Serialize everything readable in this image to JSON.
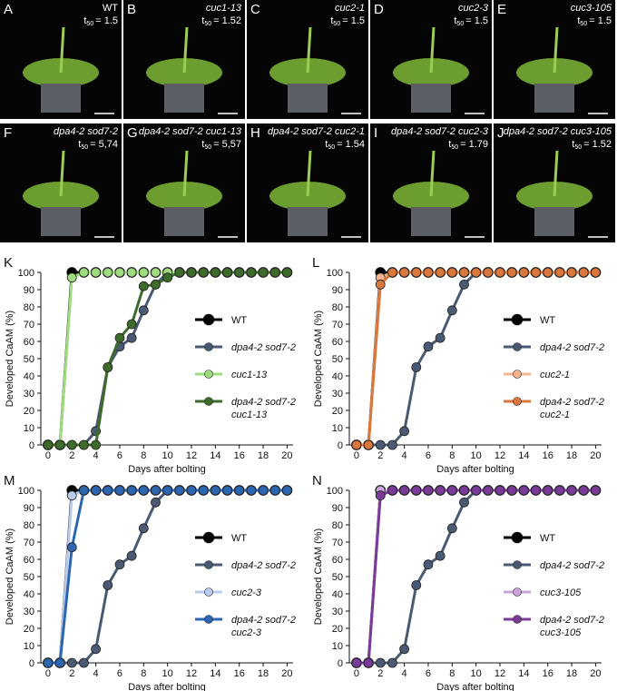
{
  "t50_symbol": "t",
  "t50_subscript": "50",
  "photo_panels": [
    {
      "letter": "A",
      "genotype": "WT",
      "t50": "= 1.5"
    },
    {
      "letter": "B",
      "genotype": "cuc1-13",
      "t50": "= 1.52"
    },
    {
      "letter": "C",
      "genotype": "cuc2-1",
      "t50": "= 1.5"
    },
    {
      "letter": "D",
      "genotype": "cuc2-3",
      "t50": "= 1.5"
    },
    {
      "letter": "E",
      "genotype": "cuc3-105",
      "t50": "= 1.5"
    },
    {
      "letter": "F",
      "genotype": "dpa4-2 sod7-2",
      "t50": "= 5,74"
    },
    {
      "letter": "G",
      "genotype": "dpa4-2 sod7-2 cuc1-13",
      "t50": "= 5,57"
    },
    {
      "letter": "H",
      "genotype": "dpa4-2 sod7-2 cuc2-1",
      "t50": "= 1.54"
    },
    {
      "letter": "I",
      "genotype": "dpa4-2 sod7-2 cuc2-3",
      "t50": "= 1.79"
    },
    {
      "letter": "J",
      "genotype": "dpa4-2 sod7-2 cuc3-105",
      "t50": "= 1.52"
    }
  ],
  "chart_data": [
    {
      "type": "line",
      "panel": "K",
      "xlabel": "Days after bolting",
      "ylabel": "Developed CaAM (%)",
      "x": [
        0,
        1,
        2,
        3,
        4,
        5,
        6,
        7,
        8,
        9,
        10,
        11,
        12,
        13,
        14,
        15,
        16,
        17,
        18,
        19,
        20
      ],
      "xlim": [
        -0.6,
        20.5
      ],
      "ylim": [
        0,
        100
      ],
      "xticks": [
        0,
        2,
        4,
        6,
        8,
        10,
        12,
        14,
        16,
        18,
        20
      ],
      "yticks": [
        0,
        10,
        20,
        30,
        40,
        50,
        60,
        70,
        80,
        90,
        100
      ],
      "series": [
        {
          "name": "WT",
          "color": "#000000",
          "values": [
            0,
            0,
            100,
            100,
            100,
            100,
            100,
            100,
            100,
            100,
            100,
            100,
            100,
            100,
            100,
            100,
            100,
            100,
            100,
            100,
            100
          ]
        },
        {
          "name": "dpa4-2 sod7-2",
          "color": "#4b5a73",
          "values": [
            0,
            0,
            0,
            0,
            8,
            45,
            57,
            62,
            78,
            93,
            100,
            100,
            100,
            100,
            100,
            100,
            100,
            100,
            100,
            100,
            100
          ]
        },
        {
          "name": "cuc1-13",
          "color": "#9fdc80",
          "values": [
            0,
            0,
            97,
            100,
            100,
            100,
            100,
            100,
            100,
            100,
            100,
            100,
            100,
            100,
            100,
            100,
            100,
            100,
            100,
            100,
            100
          ]
        },
        {
          "name": "dpa4-2 sod7-2 cuc1-13",
          "color": "#3e6b2b",
          "values": [
            0,
            0,
            0,
            0,
            0,
            45,
            62,
            70,
            92,
            93,
            97,
            100,
            100,
            100,
            100,
            100,
            100,
            100,
            100,
            100,
            100
          ]
        }
      ]
    },
    {
      "type": "line",
      "panel": "L",
      "xlabel": "Days after bolting",
      "ylabel": "Developed CaAM (%)",
      "x": [
        0,
        1,
        2,
        3,
        4,
        5,
        6,
        7,
        8,
        9,
        10,
        11,
        12,
        13,
        14,
        15,
        16,
        17,
        18,
        19,
        20
      ],
      "xlim": [
        -0.6,
        20.5
      ],
      "ylim": [
        0,
        100
      ],
      "xticks": [
        0,
        2,
        4,
        6,
        8,
        10,
        12,
        14,
        16,
        18,
        20
      ],
      "yticks": [
        0,
        10,
        20,
        30,
        40,
        50,
        60,
        70,
        80,
        90,
        100
      ],
      "series": [
        {
          "name": "WT",
          "color": "#000000",
          "values": [
            0,
            0,
            100,
            100,
            100,
            100,
            100,
            100,
            100,
            100,
            100,
            100,
            100,
            100,
            100,
            100,
            100,
            100,
            100,
            100,
            100
          ]
        },
        {
          "name": "dpa4-2 sod7-2",
          "color": "#4b5a73",
          "values": [
            0,
            0,
            0,
            0,
            8,
            45,
            57,
            62,
            78,
            93,
            100,
            100,
            100,
            100,
            100,
            100,
            100,
            100,
            100,
            100,
            100
          ]
        },
        {
          "name": "cuc2-1",
          "color": "#f5b48e",
          "values": [
            0,
            0,
            97,
            100,
            100,
            100,
            100,
            100,
            100,
            100,
            100,
            100,
            100,
            100,
            100,
            100,
            100,
            100,
            100,
            100,
            100
          ]
        },
        {
          "name": "dpa4-2 sod7-2 cuc2-1",
          "color": "#d9773c",
          "values": [
            0,
            0,
            93,
            100,
            100,
            100,
            100,
            100,
            100,
            100,
            100,
            100,
            100,
            100,
            100,
            100,
            100,
            100,
            100,
            100,
            100
          ]
        }
      ]
    },
    {
      "type": "line",
      "panel": "M",
      "xlabel": "Days after bolting",
      "ylabel": "Developed CaAM (%)",
      "x": [
        0,
        1,
        2,
        3,
        4,
        5,
        6,
        7,
        8,
        9,
        10,
        11,
        12,
        13,
        14,
        15,
        16,
        17,
        18,
        19,
        20
      ],
      "xlim": [
        -0.6,
        20.5
      ],
      "ylim": [
        0,
        100
      ],
      "xticks": [
        0,
        2,
        4,
        6,
        8,
        10,
        12,
        14,
        16,
        18,
        20
      ],
      "yticks": [
        0,
        10,
        20,
        30,
        40,
        50,
        60,
        70,
        80,
        90,
        100
      ],
      "series": [
        {
          "name": "WT",
          "color": "#000000",
          "values": [
            0,
            0,
            100,
            100,
            100,
            100,
            100,
            100,
            100,
            100,
            100,
            100,
            100,
            100,
            100,
            100,
            100,
            100,
            100,
            100,
            100
          ]
        },
        {
          "name": "dpa4-2 sod7-2",
          "color": "#4b5a73",
          "values": [
            0,
            0,
            0,
            0,
            8,
            45,
            57,
            62,
            78,
            93,
            100,
            100,
            100,
            100,
            100,
            100,
            100,
            100,
            100,
            100,
            100
          ]
        },
        {
          "name": "cuc2-3",
          "color": "#b8cbeb",
          "values": [
            0,
            0,
            97,
            100,
            100,
            100,
            100,
            100,
            100,
            100,
            100,
            100,
            100,
            100,
            100,
            100,
            100,
            100,
            100,
            100,
            100
          ]
        },
        {
          "name": "dpa4-2 sod7-2 cuc2-3",
          "color": "#2d66b0",
          "values": [
            0,
            0,
            67,
            100,
            100,
            100,
            100,
            100,
            100,
            100,
            100,
            100,
            100,
            100,
            100,
            100,
            100,
            100,
            100,
            100,
            100
          ]
        }
      ]
    },
    {
      "type": "line",
      "panel": "N",
      "xlabel": "Days after bolting",
      "ylabel": "Developed CaAM (%)",
      "x": [
        0,
        1,
        2,
        3,
        4,
        5,
        6,
        7,
        8,
        9,
        10,
        11,
        12,
        13,
        14,
        15,
        16,
        17,
        18,
        19,
        20
      ],
      "xlim": [
        -0.6,
        20.5
      ],
      "ylim": [
        0,
        100
      ],
      "xticks": [
        0,
        2,
        4,
        6,
        8,
        10,
        12,
        14,
        16,
        18,
        20
      ],
      "yticks": [
        0,
        10,
        20,
        30,
        40,
        50,
        60,
        70,
        80,
        90,
        100
      ],
      "series": [
        {
          "name": "WT",
          "color": "#000000",
          "values": [
            0,
            0,
            100,
            100,
            100,
            100,
            100,
            100,
            100,
            100,
            100,
            100,
            100,
            100,
            100,
            100,
            100,
            100,
            100,
            100,
            100
          ]
        },
        {
          "name": "dpa4-2 sod7-2",
          "color": "#4b5a73",
          "values": [
            0,
            0,
            0,
            0,
            8,
            45,
            57,
            62,
            78,
            93,
            100,
            100,
            100,
            100,
            100,
            100,
            100,
            100,
            100,
            100,
            100
          ]
        },
        {
          "name": "cuc3-105",
          "color": "#c9a3d9",
          "values": [
            0,
            0,
            100,
            100,
            100,
            100,
            100,
            100,
            100,
            100,
            100,
            100,
            100,
            100,
            100,
            100,
            100,
            100,
            100,
            100,
            100
          ]
        },
        {
          "name": "dpa4-2 sod7-2 cuc3-105",
          "color": "#7a3a98",
          "values": [
            0,
            0,
            97,
            100,
            100,
            100,
            100,
            100,
            100,
            100,
            100,
            100,
            100,
            100,
            100,
            100,
            100,
            100,
            100,
            100,
            100
          ]
        }
      ]
    }
  ]
}
